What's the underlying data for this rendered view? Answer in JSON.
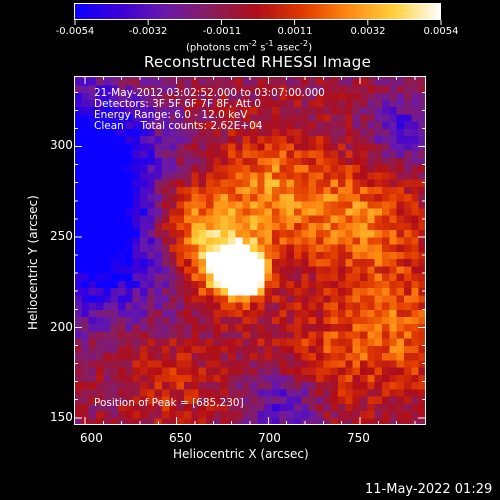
{
  "colorbar": {
    "ticks": [
      "-0.0054",
      "-0.0032",
      "-0.0011",
      "0.0011",
      "0.0032",
      "0.0054"
    ],
    "units_html": "(photons cm<sup>-2</sup> s<sup>-1</sup> asec<sup>-2</sup>)",
    "colors": [
      "#0b00ff",
      "#3c00d6",
      "#6a1aa8",
      "#8a1c5a",
      "#b00e18",
      "#e23a00",
      "#ff8a12",
      "#ffd23c",
      "#ffffff"
    ]
  },
  "title": "Reconstructed RHESSI Image",
  "info": {
    "time_range": "21-May-2012 03:02:52.000 to 03:07:00.000",
    "detectors": "Detectors: 3F 5F 6F 7F 8F, Att 0",
    "energy": "Energy Range: 6.0 - 12.0 keV",
    "clean": "Clean     Total counts: 2.62E+04",
    "peak": "Position of Peak = [685,230]"
  },
  "axes": {
    "xlabel": "Heliocentric X (arcsec)",
    "ylabel": "Heliocentric Y (arcsec)",
    "xticks": [
      "600",
      "650",
      "700",
      "750"
    ],
    "yticks": [
      "150",
      "200",
      "250",
      "300"
    ]
  },
  "timestamp": "11-May-2022 01:29",
  "chart_data": {
    "type": "heatmap",
    "title": "Reconstructed RHESSI Image",
    "xlabel": "Heliocentric X (arcsec)",
    "ylabel": "Heliocentric Y (arcsec)",
    "xlim": [
      594,
      786
    ],
    "ylim": [
      146,
      339
    ],
    "colorbar_range": [
      -0.0054,
      0.0054
    ],
    "colorbar_units": "photons cm^-2 s^-1 asec^-2",
    "peak": {
      "x": 685,
      "y": 230
    },
    "blobs": [
      {
        "x": 685,
        "y": 230,
        "sigma": 7,
        "amp": 1.3
      },
      {
        "x": 678,
        "y": 235,
        "sigma": 14,
        "amp": 0.55
      },
      {
        "x": 655,
        "y": 258,
        "sigma": 16,
        "amp": 0.35
      },
      {
        "x": 700,
        "y": 275,
        "sigma": 22,
        "amp": 0.32
      },
      {
        "x": 750,
        "y": 260,
        "sigma": 22,
        "amp": 0.28
      },
      {
        "x": 770,
        "y": 200,
        "sigma": 25,
        "amp": 0.25
      },
      {
        "x": 720,
        "y": 175,
        "sigma": 22,
        "amp": 0.2
      },
      {
        "x": 645,
        "y": 170,
        "sigma": 18,
        "amp": 0.15
      }
    ],
    "negative_regions": [
      {
        "x": 605,
        "y": 250,
        "sigma": 30,
        "amp": -0.55
      },
      {
        "x": 600,
        "y": 300,
        "sigma": 25,
        "amp": -0.5
      },
      {
        "x": 710,
        "y": 160,
        "sigma": 16,
        "amp": -0.35
      },
      {
        "x": 775,
        "y": 310,
        "sigma": 14,
        "amp": -0.25
      }
    ]
  }
}
